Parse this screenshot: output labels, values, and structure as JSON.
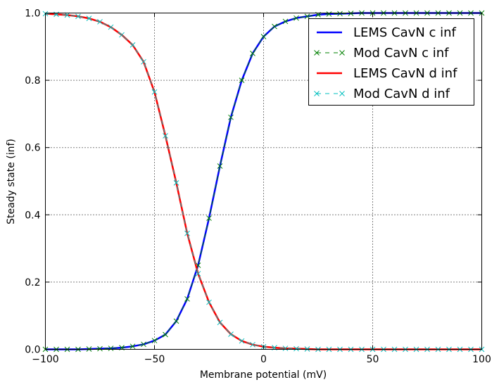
{
  "chart_data": {
    "type": "line",
    "title": "",
    "xlabel": "Membrane potential (mV)",
    "ylabel": "Steady state (inf)",
    "xlim": [
      -100,
      100
    ],
    "ylim": [
      0.0,
      1.0
    ],
    "xticks": [
      -100,
      -50,
      0,
      50,
      100
    ],
    "xtick_labels": [
      "−100",
      "−50",
      "0",
      "50",
      "100"
    ],
    "yticks": [
      0.0,
      0.2,
      0.4,
      0.6,
      0.8,
      1.0
    ],
    "ytick_labels": [
      "0.0",
      "0.2",
      "0.4",
      "0.6",
      "0.8",
      "1.0"
    ],
    "grid": true,
    "legend_position": "top-right",
    "x": [
      -100,
      -95,
      -90,
      -85,
      -80,
      -75,
      -70,
      -65,
      -60,
      -55,
      -50,
      -45,
      -40,
      -35,
      -30,
      -25,
      -20,
      -15,
      -10,
      -5,
      0,
      5,
      10,
      15,
      20,
      25,
      30,
      35,
      40,
      45,
      50,
      55,
      60,
      65,
      70,
      75,
      80,
      85,
      90,
      95,
      100
    ],
    "series": [
      {
        "name": "LEMS CavN c inf",
        "style": "solid",
        "color": "#0000ff",
        "values": [
          0.0,
          0.0,
          0.0,
          0.0,
          0.001,
          0.002,
          0.003,
          0.005,
          0.009,
          0.015,
          0.026,
          0.044,
          0.084,
          0.15,
          0.25,
          0.39,
          0.545,
          0.69,
          0.8,
          0.88,
          0.93,
          0.96,
          0.975,
          0.985,
          0.99,
          0.995,
          0.997,
          0.998,
          0.999,
          1.0,
          1.0,
          1.0,
          1.0,
          1.0,
          1.0,
          1.0,
          1.0,
          1.0,
          1.0,
          1.0,
          1.0
        ]
      },
      {
        "name": "Mod CavN c inf",
        "style": "dashed-x",
        "color": "#008000",
        "values": [
          0.0,
          0.0,
          0.0,
          0.0,
          0.001,
          0.002,
          0.003,
          0.005,
          0.009,
          0.015,
          0.026,
          0.044,
          0.084,
          0.15,
          0.25,
          0.39,
          0.545,
          0.69,
          0.8,
          0.88,
          0.93,
          0.96,
          0.975,
          0.985,
          0.99,
          0.995,
          0.997,
          0.998,
          0.999,
          1.0,
          1.0,
          1.0,
          1.0,
          1.0,
          1.0,
          1.0,
          1.0,
          1.0,
          1.0,
          1.0,
          1.0
        ]
      },
      {
        "name": "LEMS CavN d inf",
        "style": "solid",
        "color": "#ff0000",
        "values": [
          0.998,
          0.996,
          0.994,
          0.99,
          0.984,
          0.974,
          0.958,
          0.935,
          0.905,
          0.855,
          0.765,
          0.635,
          0.495,
          0.345,
          0.225,
          0.14,
          0.08,
          0.045,
          0.025,
          0.014,
          0.008,
          0.005,
          0.003,
          0.002,
          0.001,
          0.0,
          0.0,
          0.0,
          0.0,
          0.0,
          0.0,
          0.0,
          0.0,
          0.0,
          0.0,
          0.0,
          0.0,
          0.0,
          0.0,
          0.0,
          0.0
        ]
      },
      {
        "name": "Mod CavN d inf",
        "style": "dashed-x",
        "color": "#00bfbf",
        "values": [
          0.998,
          0.996,
          0.994,
          0.99,
          0.984,
          0.974,
          0.958,
          0.935,
          0.905,
          0.855,
          0.765,
          0.635,
          0.495,
          0.345,
          0.225,
          0.14,
          0.08,
          0.045,
          0.025,
          0.014,
          0.008,
          0.005,
          0.003,
          0.002,
          0.001,
          0.0,
          0.0,
          0.0,
          0.0,
          0.0,
          0.0,
          0.0,
          0.0,
          0.0,
          0.0,
          0.0,
          0.0,
          0.0,
          0.0,
          0.0,
          0.0
        ]
      }
    ]
  }
}
